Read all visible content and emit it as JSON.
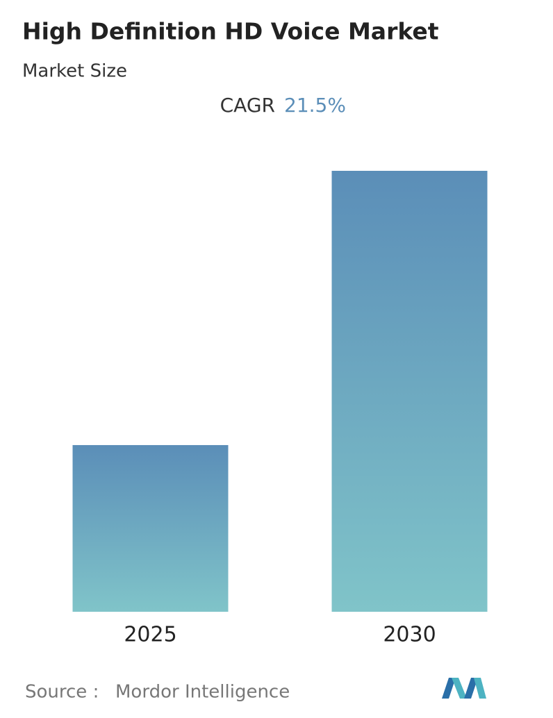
{
  "chart_data": {
    "type": "bar",
    "title": "High Definition HD Voice Market",
    "subtitle": "Market Size",
    "cagr_label": "CAGR",
    "cagr_value": "21.5%",
    "categories": [
      "2025",
      "2030"
    ],
    "values": [
      37.8,
      100
    ],
    "gradient": [
      "#5b8eb8",
      "#80c4c9"
    ],
    "ylim": [
      0,
      100
    ],
    "source_label": "Source :",
    "source": "Mordor Intelligence"
  }
}
